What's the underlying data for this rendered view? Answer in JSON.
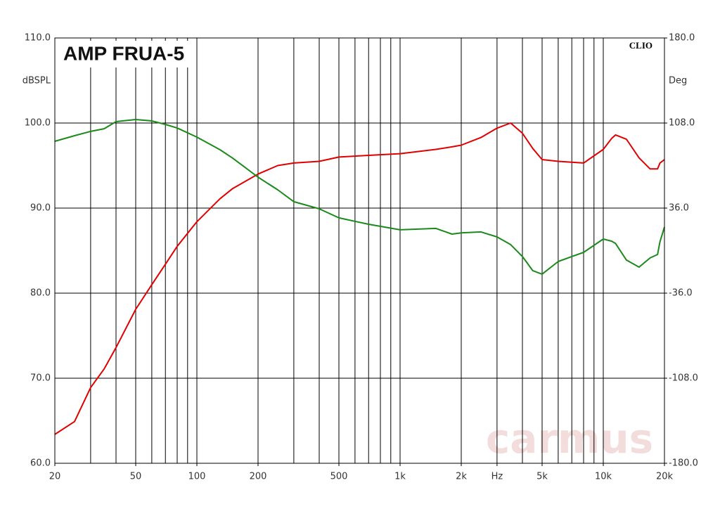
{
  "chart_data": {
    "type": "line",
    "title": "AMP FRUA-5",
    "brand": "CLIO",
    "watermark": "carmus",
    "ylabel": "dBSPL",
    "y2label": "Deg",
    "xscale": "log",
    "grid": true,
    "xlim": [
      20,
      20000
    ],
    "ylim": [
      60,
      110
    ],
    "y2lim": [
      -180,
      180
    ],
    "xticks": [
      {
        "value": 20,
        "label": "20"
      },
      {
        "value": 50,
        "label": "50"
      },
      {
        "value": 100,
        "label": "100"
      },
      {
        "value": 200,
        "label": "200"
      },
      {
        "value": 500,
        "label": "500"
      },
      {
        "value": 1000,
        "label": "1k"
      },
      {
        "value": 2000,
        "label": "2k"
      },
      {
        "value": 3000,
        "label": "Hz"
      },
      {
        "value": 5000,
        "label": "5k"
      },
      {
        "value": 10000,
        "label": "10k"
      },
      {
        "value": 20000,
        "label": "20k"
      }
    ],
    "xgrid": [
      30,
      40,
      50,
      60,
      70,
      80,
      90,
      100,
      200,
      300,
      400,
      500,
      600,
      700,
      800,
      900,
      1000,
      2000,
      3000,
      4000,
      5000,
      6000,
      7000,
      8000,
      9000,
      10000
    ],
    "yticks": [
      {
        "value": 60,
        "label": "60.0"
      },
      {
        "value": 70,
        "label": "70.0"
      },
      {
        "value": 80,
        "label": "80.0"
      },
      {
        "value": 90,
        "label": "90.0"
      },
      {
        "value": 100,
        "label": "100.0"
      },
      {
        "value": 110,
        "label": "110.0"
      }
    ],
    "y2ticks": [
      {
        "value": -180,
        "label": "-180.0"
      },
      {
        "value": -108,
        "label": "-108.0"
      },
      {
        "value": -36,
        "label": "-36.0"
      },
      {
        "value": 36,
        "label": "36.0"
      },
      {
        "value": 108,
        "label": "108.0"
      },
      {
        "value": 180,
        "label": "180.0"
      }
    ],
    "x": [
      20,
      25,
      30,
      35,
      40,
      50,
      60,
      70,
      80,
      100,
      130,
      150,
      200,
      250,
      300,
      400,
      500,
      700,
      1000,
      1500,
      1800,
      2000,
      2500,
      3000,
      3500,
      4000,
      4500,
      5000,
      6000,
      7000,
      8000,
      10000,
      11000,
      11500,
      13000,
      15000,
      17000,
      18500,
      19000,
      20000
    ],
    "series": [
      {
        "color": "#e00000",
        "values": [
          63.4,
          64.9,
          68.9,
          71.1,
          73.6,
          78.1,
          81.0,
          83.4,
          85.5,
          88.4,
          91.1,
          92.3,
          94.0,
          95.0,
          95.3,
          95.5,
          96.0,
          96.2,
          96.4,
          96.9,
          97.2,
          97.4,
          98.3,
          99.4,
          100.0,
          98.8,
          97.0,
          95.7,
          95.5,
          95.4,
          95.3,
          96.9,
          98.2,
          98.6,
          98.1,
          95.9,
          94.6,
          94.6,
          95.3,
          95.7
        ]
      },
      {
        "color": "#1a8a1a",
        "axis": "y2",
        "values": [
          92.5,
          97.3,
          100.9,
          103.2,
          109.2,
          111.0,
          109.8,
          106.8,
          103.8,
          96.1,
          85.4,
          78.3,
          62.2,
          51.5,
          41.4,
          35.4,
          27.7,
          22.3,
          17.6,
          18.8,
          14.0,
          15.0,
          15.8,
          11.6,
          5.1,
          -5.0,
          -17.0,
          -19.9,
          -9.2,
          -5.0,
          -1.5,
          9.8,
          8.0,
          6.0,
          -8.0,
          -14.0,
          -6.2,
          -3.3,
          7.5,
          20.0
        ]
      }
    ]
  }
}
